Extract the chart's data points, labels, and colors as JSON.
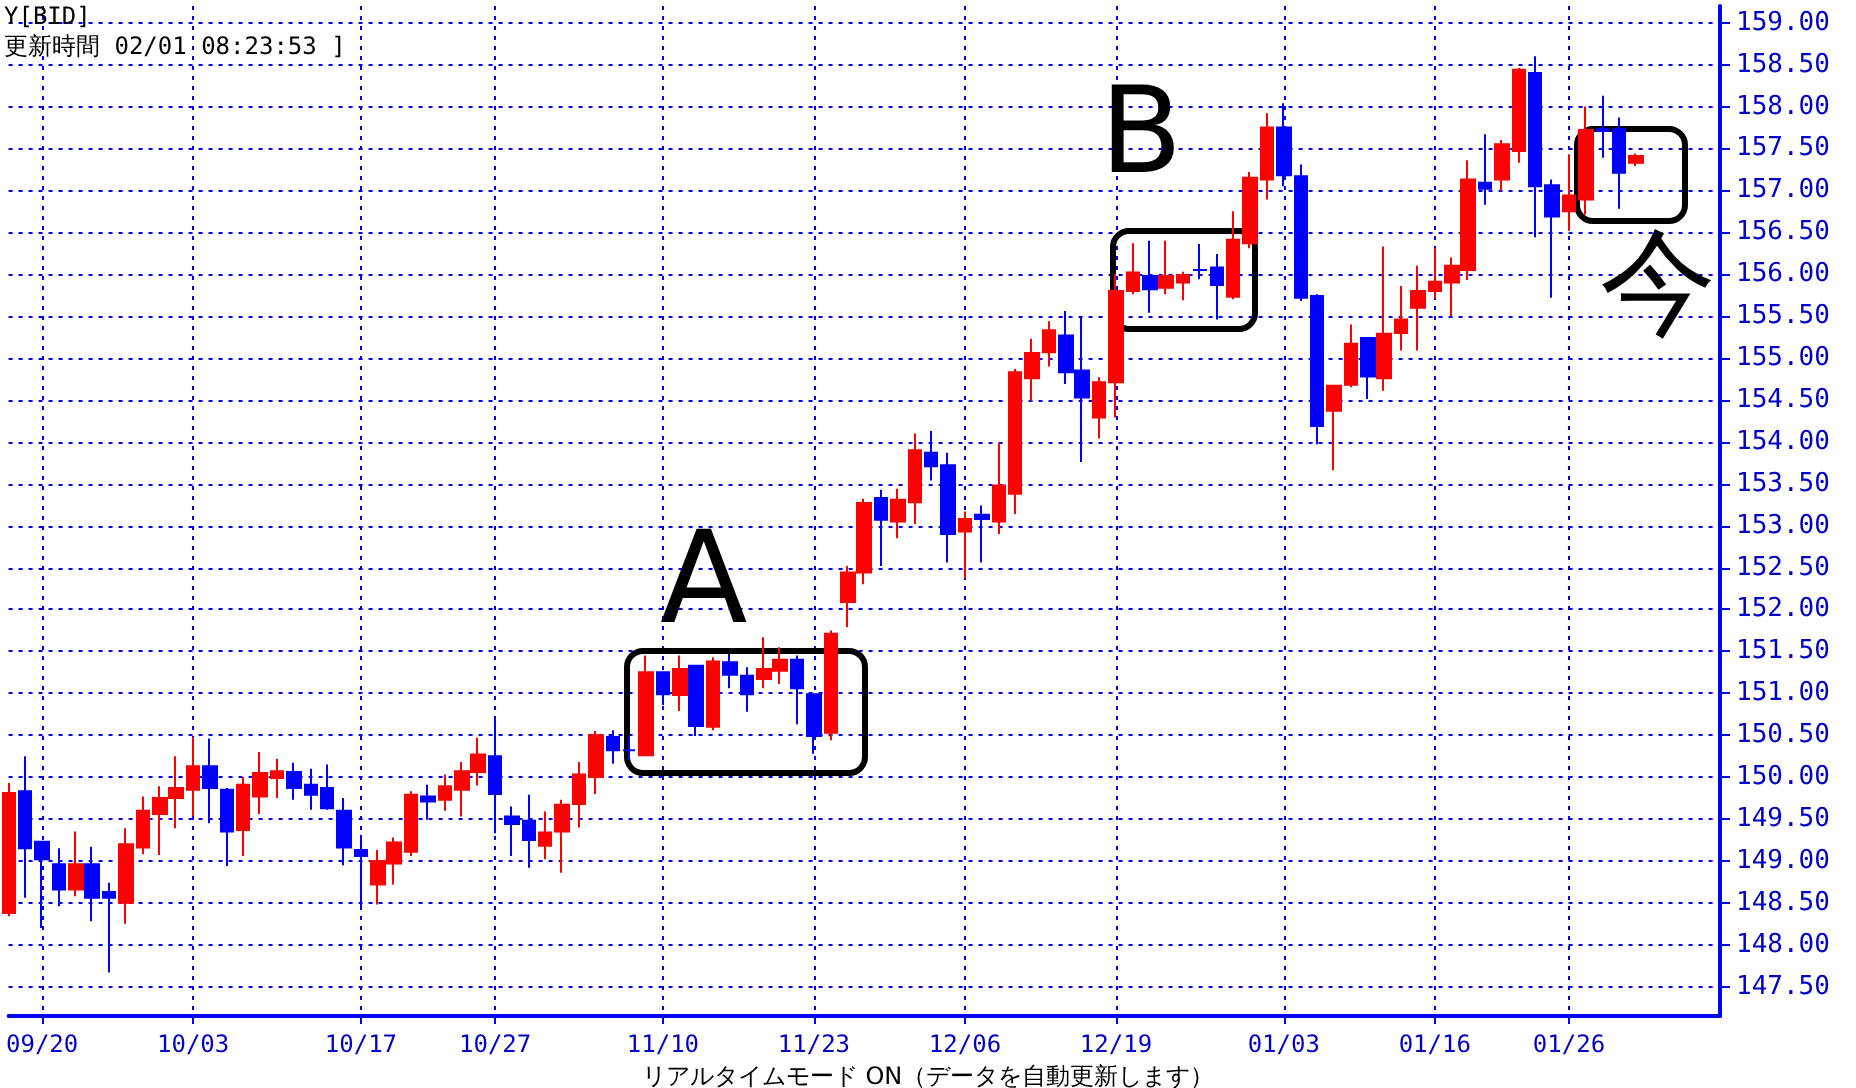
{
  "chart_data": {
    "type": "candlestick",
    "title": "Y[BID]",
    "subtitle": "更新時間 02/01 08:23:53 ]",
    "annotations": [
      "A",
      "B",
      "今",
      "リアルタイムモード ON（データを自動更新します）"
    ],
    "categories": [
      null,
      null,
      "09/20",
      null,
      null,
      null,
      null,
      null,
      null,
      null,
      null,
      "10/03",
      null,
      null,
      null,
      null,
      null,
      null,
      null,
      null,
      null,
      "10/17",
      null,
      null,
      null,
      null,
      null,
      null,
      null,
      "10/27",
      null,
      null,
      null,
      null,
      null,
      null,
      null,
      null,
      null,
      "11/10",
      null,
      null,
      null,
      null,
      null,
      null,
      null,
      null,
      "11/23",
      null,
      null,
      null,
      null,
      null,
      null,
      null,
      null,
      "12/06",
      null,
      null,
      null,
      null,
      null,
      null,
      null,
      null,
      "12/19",
      null,
      null,
      null,
      null,
      null,
      null,
      null,
      null,
      null,
      "01/03",
      null,
      null,
      null,
      null,
      null,
      null,
      null,
      null,
      "01/16",
      null,
      null,
      null,
      null,
      null,
      null,
      null,
      "01/26",
      null,
      null,
      null,
      null
    ],
    "ohlc": [
      [
        148.38,
        149.93,
        148.34,
        149.81
      ],
      [
        149.83,
        150.25,
        148.56,
        149.15
      ],
      [
        149.23,
        149.23,
        148.2,
        149.02
      ],
      [
        148.96,
        149.15,
        148.46,
        148.66
      ],
      [
        148.66,
        149.35,
        148.58,
        148.96
      ],
      [
        148.96,
        149.17,
        148.28,
        148.56
      ],
      [
        148.63,
        148.74,
        147.67,
        148.56
      ],
      [
        148.5,
        149.39,
        148.25,
        149.2
      ],
      [
        149.16,
        149.77,
        149.08,
        149.6
      ],
      [
        149.56,
        149.89,
        149.07,
        149.75
      ],
      [
        149.75,
        150.25,
        149.39,
        149.87
      ],
      [
        149.85,
        150.48,
        149.53,
        150.13
      ],
      [
        150.13,
        150.46,
        149.45,
        149.87
      ],
      [
        149.85,
        149.87,
        148.94,
        149.35
      ],
      [
        149.37,
        150.0,
        149.06,
        149.91
      ],
      [
        149.77,
        150.3,
        149.56,
        150.05
      ],
      [
        149.99,
        150.22,
        149.75,
        150.07
      ],
      [
        150.06,
        150.17,
        149.73,
        149.87
      ],
      [
        149.91,
        150.1,
        149.61,
        149.79
      ],
      [
        149.87,
        150.15,
        149.61,
        149.63
      ],
      [
        149.6,
        149.75,
        148.95,
        149.16
      ],
      [
        149.13,
        149.31,
        148.42,
        149.06
      ],
      [
        148.72,
        149.13,
        148.48,
        149.0
      ],
      [
        148.97,
        149.28,
        148.72,
        149.22
      ],
      [
        149.11,
        149.83,
        149.06,
        149.79
      ],
      [
        149.77,
        149.91,
        149.49,
        149.71
      ],
      [
        149.73,
        150.03,
        149.6,
        149.89
      ],
      [
        149.85,
        150.18,
        149.53,
        150.07
      ],
      [
        150.06,
        150.47,
        149.9,
        150.27
      ],
      [
        150.25,
        150.72,
        149.33,
        149.8
      ],
      [
        149.53,
        149.65,
        149.06,
        149.44
      ],
      [
        149.48,
        149.79,
        148.92,
        149.25
      ],
      [
        149.18,
        149.59,
        149.02,
        149.34
      ],
      [
        149.35,
        149.73,
        148.86,
        149.67
      ],
      [
        149.68,
        150.18,
        149.4,
        150.03
      ],
      [
        150.0,
        150.55,
        149.8,
        150.5
      ],
      [
        150.48,
        150.56,
        150.16,
        150.32
      ],
      [
        150.32,
        150.49,
        150.2,
        150.32
      ],
      [
        150.26,
        151.45,
        150.26,
        151.25
      ],
      [
        151.25,
        151.25,
        150.86,
        150.99
      ],
      [
        150.98,
        151.45,
        150.79,
        151.29
      ],
      [
        151.33,
        151.33,
        150.49,
        150.61
      ],
      [
        150.6,
        151.43,
        150.56,
        151.38
      ],
      [
        151.37,
        151.47,
        151.06,
        151.22
      ],
      [
        151.21,
        151.31,
        150.78,
        150.99
      ],
      [
        151.17,
        151.67,
        151.06,
        151.29
      ],
      [
        151.27,
        151.55,
        151.11,
        151.4
      ],
      [
        151.4,
        151.45,
        150.63,
        151.06
      ],
      [
        150.99,
        150.99,
        150.28,
        150.49
      ],
      [
        150.53,
        151.75,
        150.44,
        151.71
      ],
      [
        152.09,
        152.52,
        151.79,
        152.44
      ],
      [
        152.44,
        153.32,
        152.3,
        153.27
      ],
      [
        153.33,
        153.43,
        152.52,
        153.07
      ],
      [
        153.05,
        153.44,
        152.85,
        153.31
      ],
      [
        153.28,
        154.1,
        153.02,
        153.9
      ],
      [
        153.87,
        154.13,
        153.54,
        153.71
      ],
      [
        153.72,
        153.87,
        152.56,
        152.9
      ],
      [
        152.93,
        153.17,
        152.37,
        153.08
      ],
      [
        153.13,
        153.24,
        152.56,
        153.08
      ],
      [
        153.05,
        153.99,
        152.9,
        153.48
      ],
      [
        153.38,
        154.87,
        153.14,
        154.83
      ],
      [
        154.76,
        155.23,
        154.49,
        155.06
      ],
      [
        155.07,
        155.44,
        154.9,
        155.33
      ],
      [
        155.27,
        155.56,
        154.69,
        154.83
      ],
      [
        154.85,
        155.48,
        153.76,
        154.53
      ],
      [
        154.29,
        154.77,
        154.04,
        154.71
      ],
      [
        154.71,
        156.0,
        154.29,
        155.8
      ],
      [
        155.8,
        156.37,
        155.76,
        156.02
      ],
      [
        155.98,
        156.4,
        155.54,
        155.82
      ],
      [
        155.84,
        156.4,
        155.76,
        155.98
      ],
      [
        155.9,
        156.03,
        155.69,
        155.99
      ],
      [
        156.05,
        156.36,
        155.94,
        156.05
      ],
      [
        156.08,
        156.24,
        155.46,
        155.87
      ],
      [
        155.73,
        156.75,
        155.7,
        156.41
      ],
      [
        156.37,
        157.22,
        156.31,
        157.15
      ],
      [
        157.13,
        157.92,
        156.89,
        157.75
      ],
      [
        157.75,
        158.04,
        157.05,
        157.18
      ],
      [
        157.17,
        157.31,
        155.68,
        155.72
      ],
      [
        155.74,
        155.76,
        153.97,
        154.19
      ],
      [
        154.37,
        154.68,
        153.66,
        154.67
      ],
      [
        154.68,
        155.4,
        154.65,
        155.17
      ],
      [
        155.24,
        155.24,
        154.51,
        154.78
      ],
      [
        154.76,
        156.33,
        154.61,
        155.29
      ],
      [
        155.3,
        155.86,
        155.09,
        155.46
      ],
      [
        155.6,
        156.1,
        155.09,
        155.8
      ],
      [
        155.8,
        156.31,
        155.71,
        155.91
      ],
      [
        155.9,
        156.2,
        155.5,
        156.1
      ],
      [
        156.05,
        157.36,
        155.93,
        157.13
      ],
      [
        157.09,
        157.67,
        156.83,
        157.02
      ],
      [
        157.13,
        157.6,
        157.0,
        157.55
      ],
      [
        157.47,
        158.46,
        157.33,
        158.44
      ],
      [
        158.4,
        158.6,
        156.44,
        157.05
      ],
      [
        157.06,
        157.13,
        155.72,
        156.69
      ],
      [
        156.75,
        157.43,
        156.52,
        156.94
      ],
      [
        156.89,
        158.0,
        156.71,
        157.72
      ],
      [
        157.73,
        158.13,
        157.39,
        157.71
      ],
      [
        157.73,
        157.87,
        156.78,
        157.21
      ],
      [
        157.33,
        157.44,
        157.29,
        157.41
      ]
    ],
    "colors": [
      "#ff0000",
      "#0000ff",
      "#0000ff",
      "#0000ff",
      "#ff0000",
      "#0000ff",
      "#0000ff",
      "#ff0000",
      "#ff0000",
      "#ff0000",
      "#ff0000",
      "#ff0000",
      "#0000ff",
      "#0000ff",
      "#ff0000",
      "#ff0000",
      "#ff0000",
      "#0000ff",
      "#0000ff",
      "#0000ff",
      "#0000ff",
      "#0000ff",
      "#ff0000",
      "#ff0000",
      "#ff0000",
      "#0000ff",
      "#ff0000",
      "#ff0000",
      "#ff0000",
      "#0000ff",
      "#0000ff",
      "#0000ff",
      "#ff0000",
      "#ff0000",
      "#ff0000",
      "#ff0000",
      "#0000ff",
      "#0000ff",
      "#ff0000",
      "#0000ff",
      "#ff0000",
      "#0000ff",
      "#ff0000",
      "#0000ff",
      "#0000ff",
      "#ff0000",
      "#ff0000",
      "#0000ff",
      "#0000ff",
      "#ff0000",
      "#ff0000",
      "#ff0000",
      "#0000ff",
      "#ff0000",
      "#ff0000",
      "#0000ff",
      "#0000ff",
      "#ff0000",
      "#0000ff",
      "#ff0000",
      "#ff0000",
      "#ff0000",
      "#ff0000",
      "#0000ff",
      "#0000ff",
      "#ff0000",
      "#ff0000",
      "#ff0000",
      "#0000ff",
      "#ff0000",
      "#ff0000",
      "#0000ff",
      "#0000ff",
      "#ff0000",
      "#ff0000",
      "#ff0000",
      "#0000ff",
      "#0000ff",
      "#0000ff",
      "#ff0000",
      "#ff0000",
      "#0000ff",
      "#ff0000",
      "#ff0000",
      "#ff0000",
      "#ff0000",
      "#ff0000",
      "#ff0000",
      "#0000ff",
      "#ff0000",
      "#ff0000",
      "#0000ff",
      "#0000ff",
      "#ff0000",
      "#ff0000",
      "#0000ff",
      "#0000ff",
      "#ff0000"
    ],
    "ylim": [
      147.15,
      159.2
    ],
    "yticks": [
      {
        "value": 147.5,
        "label": "147.50"
      },
      {
        "value": 148,
        "label": "148.00"
      },
      {
        "value": 148.5,
        "label": "148.50"
      },
      {
        "value": 149,
        "label": "149.00"
      },
      {
        "value": 149.5,
        "label": "149.50"
      },
      {
        "value": 150,
        "label": "150.00"
      },
      {
        "value": 150.5,
        "label": "150.50"
      },
      {
        "value": 151,
        "label": "151.00"
      },
      {
        "value": 151.5,
        "label": "151.50"
      },
      {
        "value": 152,
        "label": "152.00"
      },
      {
        "value": 152.5,
        "label": "152.50"
      },
      {
        "value": 153,
        "label": "153.00"
      },
      {
        "value": 153.5,
        "label": "153.50"
      },
      {
        "value": 154,
        "label": "154.00"
      },
      {
        "value": 154.5,
        "label": "154.50"
      },
      {
        "value": 155,
        "label": "155.00"
      },
      {
        "value": 155.5,
        "label": "155.50"
      },
      {
        "value": 156,
        "label": "156.00"
      },
      {
        "value": 156.5,
        "label": "156.50"
      },
      {
        "value": 157,
        "label": "157.00"
      },
      {
        "value": 157.5,
        "label": "157.50"
      },
      {
        "value": 158,
        "label": "158.00"
      },
      {
        "value": 158.5,
        "label": "158.50"
      },
      {
        "value": 159,
        "label": "159.00"
      }
    ],
    "grid": true
  }
}
